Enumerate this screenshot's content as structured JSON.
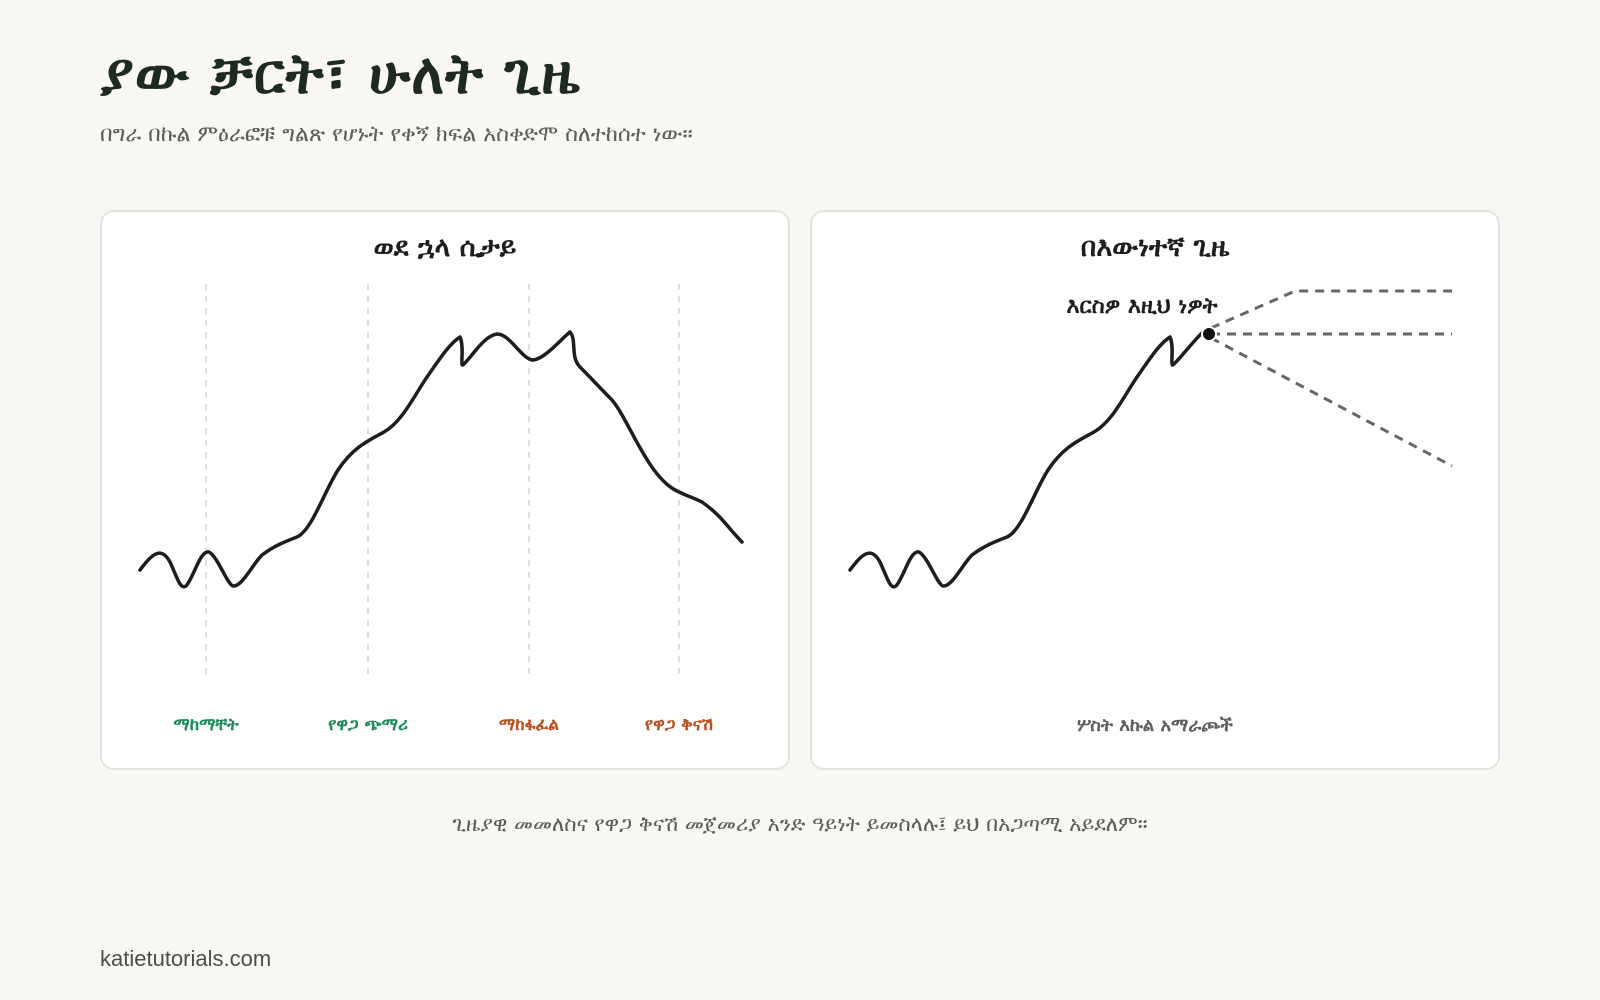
{
  "header": {
    "title": "ያው ቻርት፣ ሁለት ጊዜ",
    "subtitle": "በግራ በኩል ምዕራፎቹ ግልጽ የሆኑት የቀኝ ክፍል አስቀድሞ ስለተከሰተ ነው።"
  },
  "left_panel": {
    "title": "ወደ ኋላ ሲታይ",
    "phases": [
      {
        "label": "ማከማቸት",
        "color": "#1d8a5a"
      },
      {
        "label": "የዋጋ ጭማሪ",
        "color": "#1d8a5a"
      },
      {
        "label": "ማከፋፈል",
        "color": "#b8501e"
      },
      {
        "label": "የዋጋ ቅናሽ",
        "color": "#b8501e"
      }
    ]
  },
  "right_panel": {
    "title": "በእውነተኛ ጊዜ",
    "marker_label": "እርስዎ እዚህ ነዎት",
    "outcomes_label": "ሦስት እኩል አማራጮች",
    "future_paths": [
      "up",
      "flat",
      "down"
    ]
  },
  "caption": "ጊዜያዊ መመለስና የዋጋ ቅናሽ መጀመሪያ አንድ ዓይነት ይመስላሉ፤ ይህ በአጋጣሚ አይደለም።",
  "footer": {
    "site": "katietutorials.com"
  },
  "colors": {
    "background": "#f8f7f4",
    "line": "#1b1f1d",
    "accumulation_markup": "#1d8a5a",
    "distribution_markdown": "#b8501e",
    "future_path": "#666666"
  }
}
